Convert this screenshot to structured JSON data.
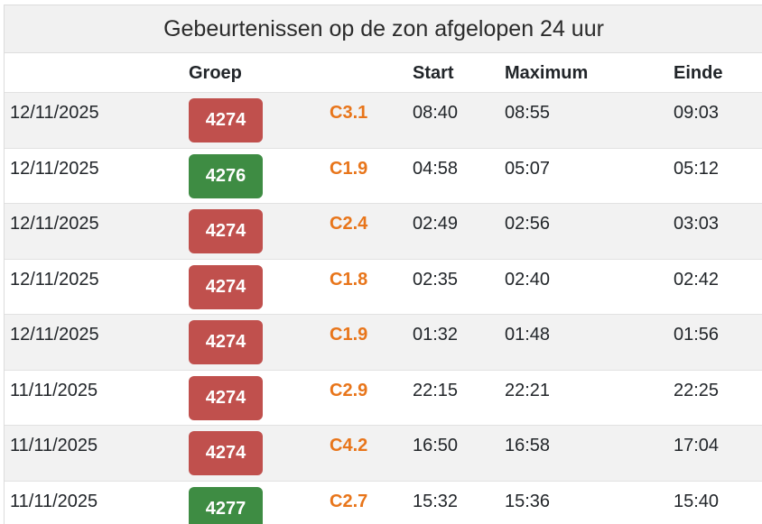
{
  "title": "Gebeurtenissen op de zon afgelopen 24 uur",
  "columns": {
    "date": "",
    "group": "Groep",
    "class": "",
    "start": "Start",
    "maximum": "Maximum",
    "end": "Einde"
  },
  "colors": {
    "badge_red": "#c0504d",
    "badge_green": "#3e8c43",
    "class_orange": "#e8751a"
  },
  "rows": [
    {
      "date": "12/11/2025",
      "group": "4274",
      "group_color": "red",
      "class": "C3.1",
      "start": "08:40",
      "maximum": "08:55",
      "end": "09:03"
    },
    {
      "date": "12/11/2025",
      "group": "4276",
      "group_color": "green",
      "class": "C1.9",
      "start": "04:58",
      "maximum": "05:07",
      "end": "05:12"
    },
    {
      "date": "12/11/2025",
      "group": "4274",
      "group_color": "red",
      "class": "C2.4",
      "start": "02:49",
      "maximum": "02:56",
      "end": "03:03"
    },
    {
      "date": "12/11/2025",
      "group": "4274",
      "group_color": "red",
      "class": "C1.8",
      "start": "02:35",
      "maximum": "02:40",
      "end": "02:42"
    },
    {
      "date": "12/11/2025",
      "group": "4274",
      "group_color": "red",
      "class": "C1.9",
      "start": "01:32",
      "maximum": "01:48",
      "end": "01:56"
    },
    {
      "date": "11/11/2025",
      "group": "4274",
      "group_color": "red",
      "class": "C2.9",
      "start": "22:15",
      "maximum": "22:21",
      "end": "22:25"
    },
    {
      "date": "11/11/2025",
      "group": "4274",
      "group_color": "red",
      "class": "C4.2",
      "start": "16:50",
      "maximum": "16:58",
      "end": "17:04"
    },
    {
      "date": "11/11/2025",
      "group": "4277",
      "group_color": "green",
      "class": "C2.7",
      "start": "15:32",
      "maximum": "15:36",
      "end": "15:40"
    }
  ]
}
